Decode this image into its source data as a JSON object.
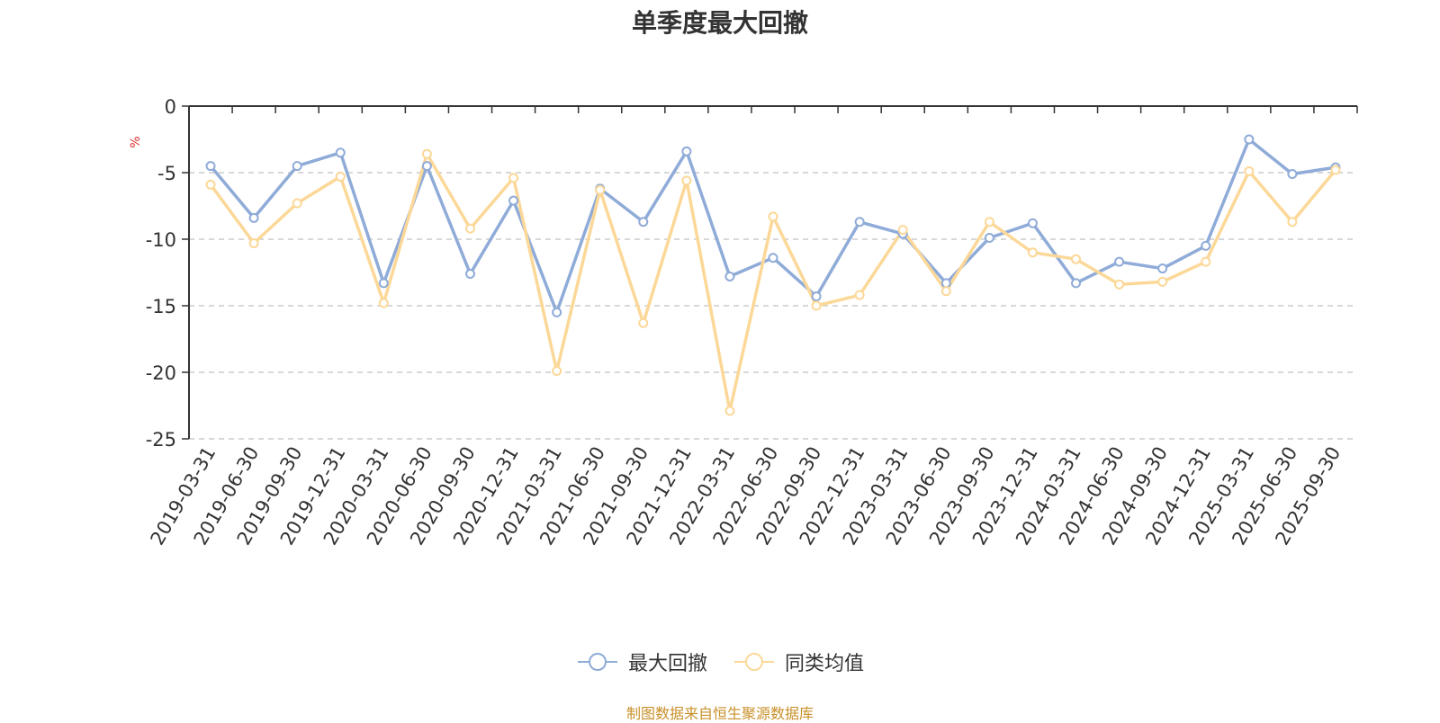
{
  "chart_data": {
    "type": "line",
    "title": "单季度最大回撤",
    "ylabel": "%",
    "xlabel": "",
    "ylim": [
      -25,
      0
    ],
    "yticks": [
      0,
      -5,
      -10,
      -15,
      -20,
      -25
    ],
    "grid": true,
    "legend_position": "bottom",
    "categories": [
      "2019-03-31",
      "2019-06-30",
      "2019-09-30",
      "2019-12-31",
      "2020-03-31",
      "2020-06-30",
      "2020-09-30",
      "2020-12-31",
      "2021-03-31",
      "2021-06-30",
      "2021-09-30",
      "2021-12-31",
      "2022-03-31",
      "2022-06-30",
      "2022-09-30",
      "2022-12-31",
      "2023-03-31",
      "2023-06-30",
      "2023-09-30",
      "2023-12-31",
      "2024-03-31",
      "2024-06-30",
      "2024-09-30",
      "2024-12-31",
      "2025-03-31",
      "2025-06-30",
      "2025-09-30"
    ],
    "series": [
      {
        "name": "最大回撤",
        "color": "#8fabd8",
        "values": [
          -4.5,
          -8.4,
          -4.5,
          -3.5,
          -13.3,
          -4.5,
          -12.6,
          -7.1,
          -15.5,
          -6.2,
          -8.7,
          -3.4,
          -12.8,
          -11.4,
          -14.3,
          -8.7,
          -9.6,
          -13.3,
          -9.9,
          -8.8,
          -13.3,
          -11.7,
          -12.2,
          -10.5,
          -2.5,
          -5.1,
          -4.6
        ]
      },
      {
        "name": "同类均值",
        "color": "#fcd898",
        "values": [
          -5.9,
          -10.3,
          -7.3,
          -5.3,
          -14.8,
          -3.6,
          -9.2,
          -5.4,
          -19.9,
          -6.3,
          -16.3,
          -5.6,
          -22.9,
          -8.3,
          -15.0,
          -14.2,
          -9.3,
          -13.9,
          -8.7,
          -11.0,
          -11.5,
          -13.4,
          -13.2,
          -11.7,
          -4.9,
          -8.7,
          -4.8
        ]
      }
    ]
  },
  "footer": {
    "source_note": "制图数据来自恒生聚源数据库"
  }
}
